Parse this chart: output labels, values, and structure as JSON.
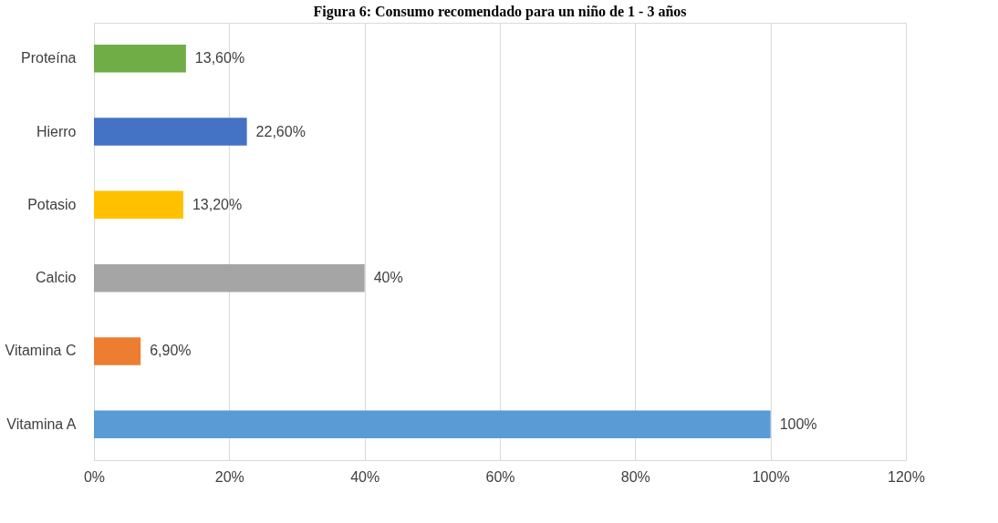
{
  "chart_data": {
    "type": "bar",
    "orientation": "horizontal",
    "title": "Figura 6: Consumo recomendado para un niño de 1 - 3 años",
    "categories": [
      "Proteína",
      "Hierro",
      "Potasio",
      "Calcio",
      "Vitamina C",
      "Vitamina A"
    ],
    "values": [
      13.6,
      22.6,
      13.2,
      40,
      6.9,
      100
    ],
    "colors": [
      "#70ad47",
      "#4472c4",
      "#ffc000",
      "#a5a5a5",
      "#ed7d31",
      "#5b9bd5"
    ],
    "value_labels": [
      "13,60%",
      "22,60%",
      "13,20%",
      "40%",
      "6,90%",
      "100%"
    ],
    "xlim": [
      0,
      120
    ],
    "xticks": [
      {
        "value": 0,
        "label": "0%"
      },
      {
        "value": 20,
        "label": "20%"
      },
      {
        "value": 40,
        "label": "40%"
      },
      {
        "value": 60,
        "label": "60%"
      },
      {
        "value": 80,
        "label": "80%"
      },
      {
        "value": 100,
        "label": "100%"
      },
      {
        "value": 120,
        "label": "120%"
      }
    ],
    "grid": "x"
  }
}
